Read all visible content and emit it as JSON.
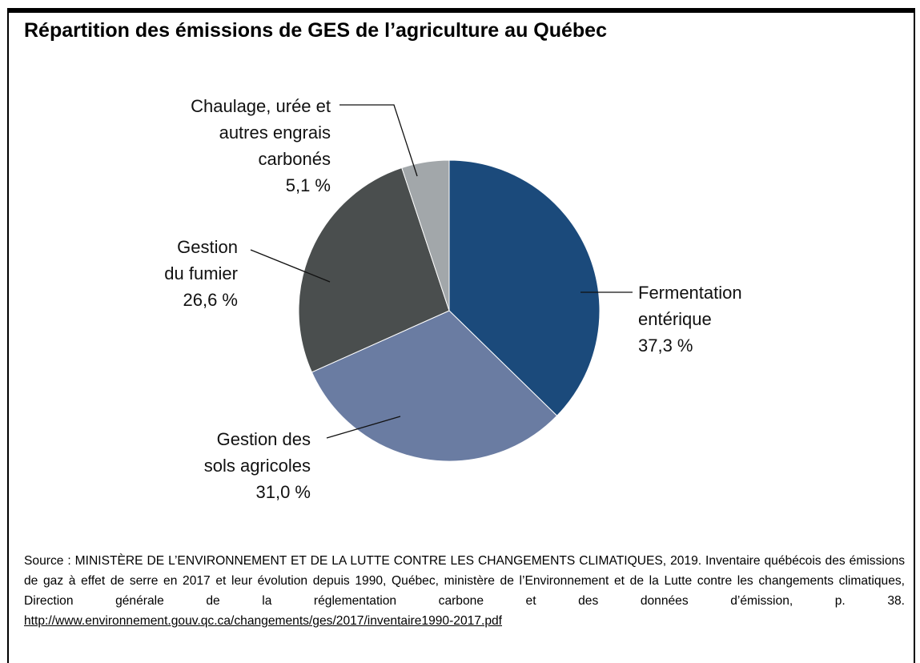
{
  "chart_data": {
    "type": "pie",
    "title": "Répartition des émissions de GES de l’agriculture au Québec",
    "categories": [
      "Fermentation entérique",
      "Gestion des sols agricoles",
      "Gestion du fumier",
      "Chaulage, urée et autres engrais carbonés"
    ],
    "values": [
      37.3,
      31.0,
      26.6,
      5.1
    ],
    "value_labels": [
      "37,3 %",
      "31,0 %",
      "26,6 %",
      "5,1 %"
    ],
    "colors": [
      "#1b4a7b",
      "#6a7ca2",
      "#4a4e4e",
      "#a2a7aa"
    ],
    "source": "Source : MINISTÈRE DE L’ENVIRONNEMENT ET DE LA LUTTE CONTRE LES CHANGEMENTS CLIMATIQUES, 2019. Inventaire québécois des émissions de gaz à effet de serre en 2017 et leur évolution depuis 1990, Québec, ministère de l’Environnement et de la Lutte contre les changements climatiques, Direction générale de la réglementation carbone et des données d’émission, p. 38.",
    "source_url": "http://www.environnement.gouv.qc.ca/changements/ges/2017/inventaire1990-2017.pdf"
  }
}
